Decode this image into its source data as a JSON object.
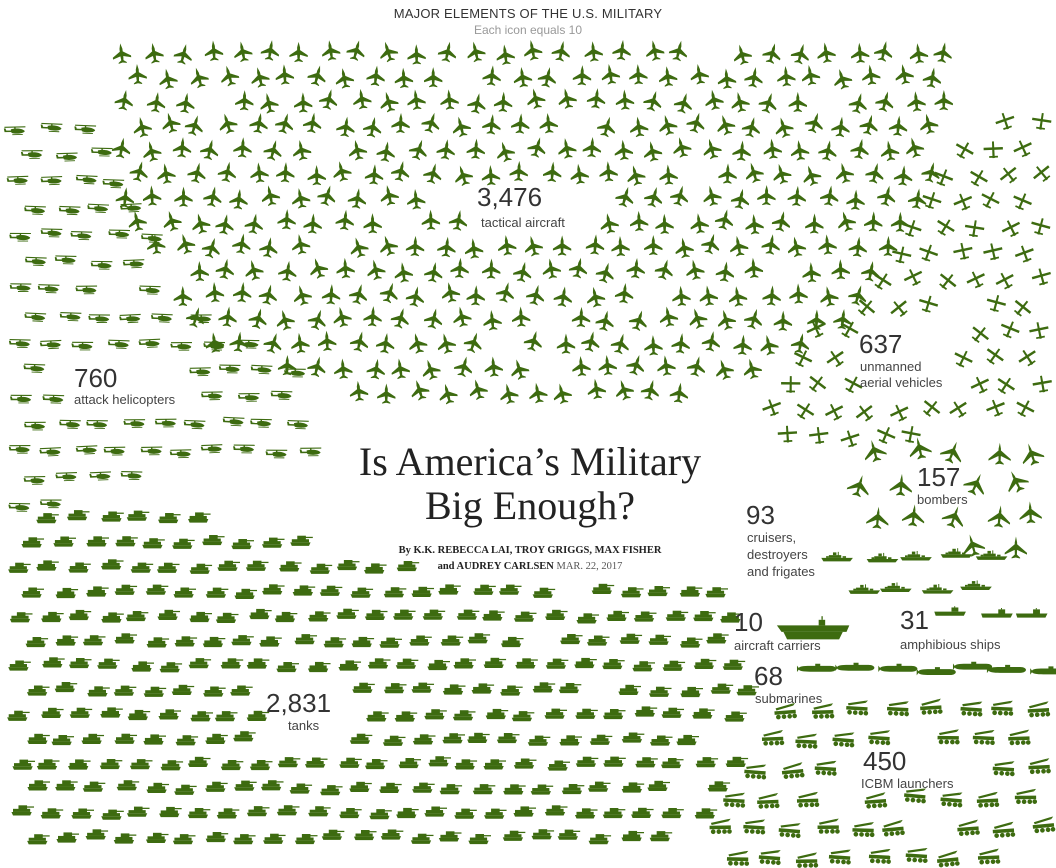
{
  "header": {
    "title": "MAJOR ELEMENTS OF THE U.S. MILITARY",
    "subtitle": "Each icon equals 10"
  },
  "headline": {
    "line1": "Is America’s Military",
    "line2": "Big Enough?"
  },
  "byline": {
    "line1": "By K.K. REBECCA LAI, TROY GRIGGS, MAX FISHER",
    "line2": "and AUDREY CARLSEN",
    "date": "MAR. 22, 2017"
  },
  "colors": {
    "icon": "#3d6b10",
    "text": "#333333"
  },
  "chart_data": {
    "type": "table",
    "title": "MAJOR ELEMENTS OF THE U.S. MILITARY",
    "unit_note": "Each icon equals 10",
    "units_per_icon": 10,
    "categories": [
      {
        "id": "aircraft",
        "value": 3476,
        "value_label": "3,476",
        "label": "tactical aircraft",
        "icon": "fighter-jet-icon"
      },
      {
        "id": "helicopters",
        "value": 760,
        "value_label": "760",
        "label": "attack helicopters",
        "icon": "helicopter-icon"
      },
      {
        "id": "uav",
        "value": 637,
        "value_label": "637",
        "label_lines": [
          "unmanned",
          "aerial vehicles"
        ],
        "icon": "drone-icon"
      },
      {
        "id": "bombers",
        "value": 157,
        "value_label": "157",
        "label": "bombers",
        "icon": "bomber-icon"
      },
      {
        "id": "cruisers",
        "value": 93,
        "value_label": "93",
        "label_lines": [
          "cruisers,",
          "destroyers",
          "and frigates"
        ],
        "icon": "warship-icon"
      },
      {
        "id": "carriers",
        "value": 10,
        "value_label": "10",
        "label": "aircraft carriers",
        "icon": "aircraft-carrier-icon"
      },
      {
        "id": "amphibious",
        "value": 31,
        "value_label": "31",
        "label": "amphibious ships",
        "icon": "amphibious-ship-icon"
      },
      {
        "id": "submarines",
        "value": 68,
        "value_label": "68",
        "label": "submarines",
        "icon": "submarine-icon"
      },
      {
        "id": "tanks",
        "value": 2831,
        "value_label": "2,831",
        "label": "tanks",
        "icon": "tank-icon"
      },
      {
        "id": "icbm",
        "value": 450,
        "value_label": "450",
        "label": "ICBM launchers",
        "icon": "icbm-launcher-icon"
      }
    ]
  }
}
